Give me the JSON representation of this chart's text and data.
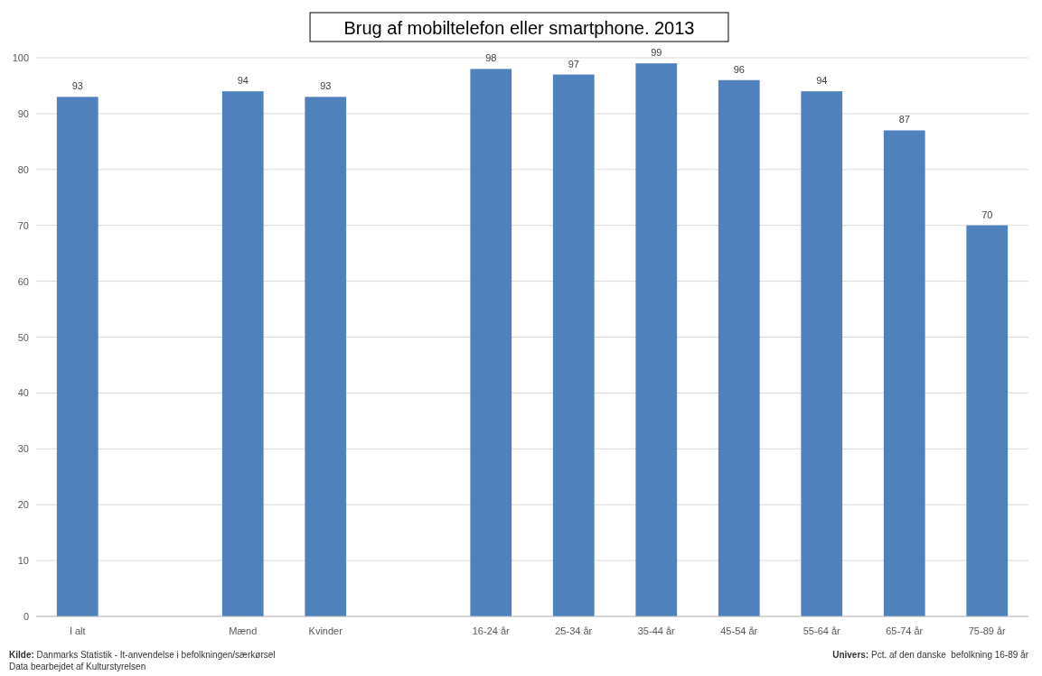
{
  "chart_data": {
    "type": "bar",
    "title": "Brug af mobiltelefon eller smartphone. 2013",
    "categories": [
      "I alt",
      null,
      "Mænd",
      "Kvinder",
      null,
      "16-24 år",
      "25-34 år",
      "35-44 år",
      "45-54 år",
      "55-64 år",
      "65-74 år",
      "75-89 år"
    ],
    "values": [
      93,
      null,
      94,
      93,
      null,
      98,
      97,
      99,
      96,
      94,
      87,
      70
    ],
    "color": "#4f81bd",
    "ylim": [
      0,
      100
    ],
    "yticks": [
      0,
      10,
      20,
      30,
      40,
      50,
      60,
      70,
      80,
      90,
      100
    ],
    "grid": "y",
    "data_labels": true,
    "annotations": [
      "Kilde: Danmarks Statistik - It-anvendelse i befolkningen/særkørsel",
      "Data bearbejdet af Kulturstyrelsen",
      "Univers: Pct. af den danske  befolkning 16-89 år"
    ]
  }
}
